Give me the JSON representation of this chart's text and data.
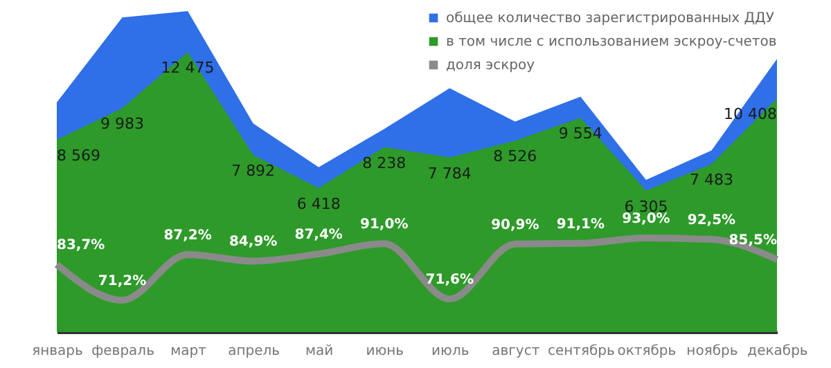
{
  "chart_data": {
    "type": "area",
    "categories": [
      "январь",
      "февраль",
      "март",
      "апрель",
      "май",
      "июнь",
      "июль",
      "август",
      "сентябрь",
      "октябрь",
      "ноябрь",
      "декабрь"
    ],
    "series": [
      {
        "name": "общее количество зарегистрированных ДДУ",
        "color": "#2f6fe8",
        "values": [
          10238,
          14021,
          14306,
          9295,
          7343,
          9053,
          10872,
          9380,
          10487,
          6780,
          8090,
          12173
        ]
      },
      {
        "name": "в том числе с использованием эскроу-счетов",
        "color": "#2e9a2a",
        "values": [
          8569,
          9983,
          12475,
          7892,
          6418,
          8238,
          7784,
          8526,
          9554,
          6305,
          7483,
          10408
        ],
        "value_labels": [
          "8 569",
          "9 983",
          "12 475",
          "7 892",
          "6 418",
          "8 238",
          "7 784",
          "8 526",
          "9 554",
          "6 305",
          "7 483",
          "10 408"
        ]
      },
      {
        "name": "доля эскроу",
        "type": "line",
        "axis": "y2",
        "color": "#8a8a8a",
        "values": [
          83.7,
          71.2,
          87.2,
          84.9,
          87.4,
          91.0,
          71.6,
          90.9,
          91.1,
          93.0,
          92.5,
          85.5
        ],
        "value_labels": [
          "83,7%",
          "71,2%",
          "87,2%",
          "84,9%",
          "87,4%",
          "91,0%",
          "71,6%",
          "90,9%",
          "91,1%",
          "93,0%",
          "92,5%",
          "85,5%"
        ]
      }
    ],
    "tick_labels": "x",
    "legend": "top right",
    "grid": false,
    "marker": "none"
  }
}
